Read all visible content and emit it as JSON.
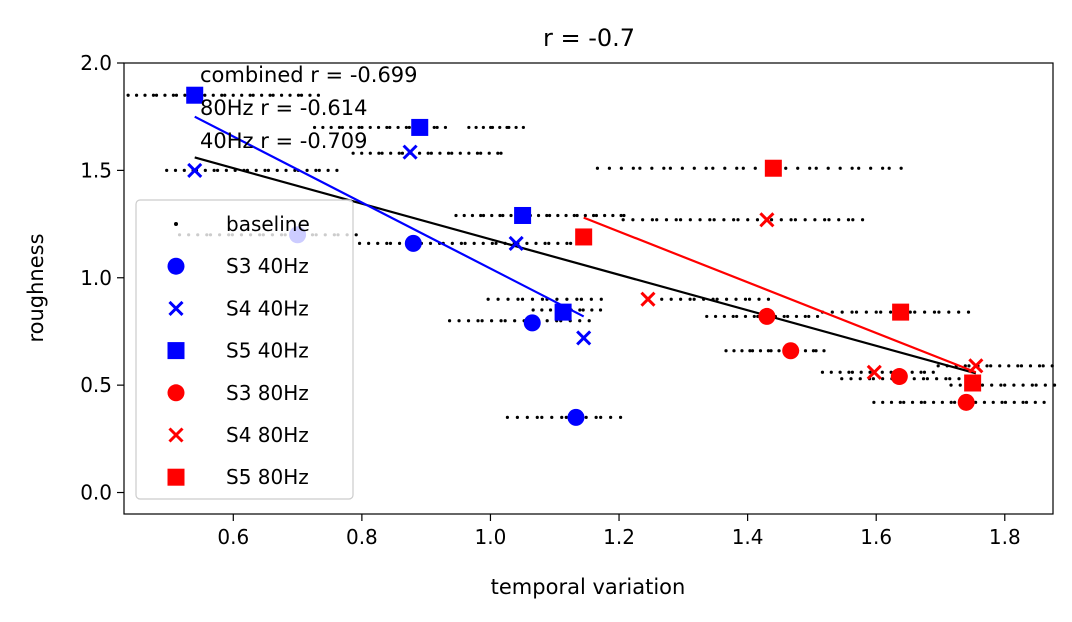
{
  "chart_data": {
    "type": "scatter",
    "title": "r = -0.7",
    "xlabel": "temporal variation",
    "ylabel": "roughness",
    "xlim": [
      0.43,
      1.875
    ],
    "ylim": [
      -0.1,
      2.0
    ],
    "xticks": [
      0.6,
      0.8,
      1.0,
      1.2,
      1.4,
      1.6,
      1.8
    ],
    "xtick_labels": [
      "0.6",
      "0.8",
      "1.0",
      "1.2",
      "1.4",
      "1.6",
      "1.8"
    ],
    "yticks": [
      0.0,
      0.5,
      1.0,
      1.5,
      2.0
    ],
    "ytick_labels": [
      "0.0",
      "0.5",
      "1.0",
      "1.5",
      "2.0"
    ],
    "grid": false,
    "legend_position": "lower-left",
    "annotations": [
      "combined r = -0.699",
      "80Hz r = -0.614",
      "40Hz r = -0.709"
    ],
    "baseline_clusters": [
      {
        "y": 1.85,
        "x_start": 0.44,
        "x_end": 0.73,
        "count": 28
      },
      {
        "y": 1.5,
        "x_start": 0.5,
        "x_end": 0.76,
        "count": 24
      },
      {
        "y": 1.7,
        "x_start": 0.73,
        "x_end": 0.93,
        "count": 20
      },
      {
        "y": 1.58,
        "x_start": 0.79,
        "x_end": 1.02,
        "count": 22
      },
      {
        "y": 1.7,
        "x_start": 0.97,
        "x_end": 1.05,
        "count": 10
      },
      {
        "y": 1.2,
        "x_start": 0.52,
        "x_end": 0.79,
        "count": 24
      },
      {
        "y": 1.16,
        "x_start": 0.8,
        "x_end": 1.14,
        "count": 30
      },
      {
        "y": 1.29,
        "x_start": 0.95,
        "x_end": 1.21,
        "count": 26
      },
      {
        "y": 0.9,
        "x_start": 1.0,
        "x_end": 1.17,
        "count": 14
      },
      {
        "y": 0.85,
        "x_start": 1.07,
        "x_end": 1.17,
        "count": 10
      },
      {
        "y": 0.8,
        "x_start": 0.94,
        "x_end": 1.15,
        "count": 18
      },
      {
        "y": 0.35,
        "x_start": 1.03,
        "x_end": 1.2,
        "count": 14
      },
      {
        "y": 1.51,
        "x_start": 1.17,
        "x_end": 1.64,
        "count": 30
      },
      {
        "y": 1.27,
        "x_start": 1.21,
        "x_end": 1.58,
        "count": 30
      },
      {
        "y": 0.9,
        "x_start": 1.27,
        "x_end": 1.43,
        "count": 14
      },
      {
        "y": 0.82,
        "x_start": 1.34,
        "x_end": 1.51,
        "count": 16
      },
      {
        "y": 0.66,
        "x_start": 1.37,
        "x_end": 1.52,
        "count": 16
      },
      {
        "y": 0.84,
        "x_start": 1.52,
        "x_end": 1.74,
        "count": 18
      },
      {
        "y": 0.56,
        "x_start": 1.52,
        "x_end": 1.69,
        "count": 16
      },
      {
        "y": 0.53,
        "x_start": 1.55,
        "x_end": 1.73,
        "count": 16
      },
      {
        "y": 0.59,
        "x_start": 1.7,
        "x_end": 1.875,
        "count": 16
      },
      {
        "y": 0.5,
        "x_start": 1.72,
        "x_end": 1.875,
        "count": 14
      },
      {
        "y": 0.42,
        "x_start": 1.6,
        "x_end": 1.86,
        "count": 24
      }
    ],
    "series": [
      {
        "name": "S3 40Hz",
        "marker": "circle",
        "color": "#0000ff",
        "points": [
          [
            0.7,
            1.2
          ],
          [
            0.88,
            1.16
          ],
          [
            1.065,
            0.79
          ],
          [
            1.133,
            0.35
          ]
        ]
      },
      {
        "name": "S4 40Hz",
        "marker": "x",
        "color": "#0000ff",
        "points": [
          [
            0.54,
            1.5
          ],
          [
            0.875,
            1.585
          ],
          [
            1.04,
            1.16
          ],
          [
            1.145,
            0.72
          ]
        ]
      },
      {
        "name": "S5 40Hz",
        "marker": "square",
        "color": "#0000ff",
        "points": [
          [
            0.54,
            1.85
          ],
          [
            0.89,
            1.7
          ],
          [
            1.05,
            1.29
          ],
          [
            1.113,
            0.84
          ]
        ]
      },
      {
        "name": "S3 80Hz",
        "marker": "circle",
        "color": "#ff0000",
        "points": [
          [
            1.43,
            0.82
          ],
          [
            1.467,
            0.66
          ],
          [
            1.636,
            0.54
          ],
          [
            1.74,
            0.42
          ]
        ]
      },
      {
        "name": "S4 80Hz",
        "marker": "x",
        "color": "#ff0000",
        "points": [
          [
            1.245,
            0.9
          ],
          [
            1.43,
            1.27
          ],
          [
            1.597,
            0.56
          ],
          [
            1.755,
            0.59
          ]
        ]
      },
      {
        "name": "S5 80Hz",
        "marker": "square",
        "color": "#ff0000",
        "points": [
          [
            1.145,
            1.19
          ],
          [
            1.44,
            1.51
          ],
          [
            1.638,
            0.84
          ],
          [
            1.75,
            0.51
          ]
        ]
      }
    ],
    "fit_lines": [
      {
        "label": "combined",
        "color": "#000000",
        "x": [
          0.54,
          1.755
        ],
        "y": [
          1.56,
          0.555
        ]
      },
      {
        "label": "40Hz",
        "color": "#0000ff",
        "x": [
          0.54,
          1.145
        ],
        "y": [
          1.75,
          0.82
        ]
      },
      {
        "label": "80Hz",
        "color": "#ff0000",
        "x": [
          1.145,
          1.755
        ],
        "y": [
          1.28,
          0.56
        ]
      }
    ],
    "legend": [
      {
        "label": "baseline",
        "marker": "dot",
        "color": "#000000"
      },
      {
        "label": "S3 40Hz",
        "marker": "circle",
        "color": "#0000ff"
      },
      {
        "label": "S4 40Hz",
        "marker": "x",
        "color": "#0000ff"
      },
      {
        "label": "S5 40Hz",
        "marker": "square",
        "color": "#0000ff"
      },
      {
        "label": "S3 80Hz",
        "marker": "circle",
        "color": "#ff0000"
      },
      {
        "label": "S4 80Hz",
        "marker": "x",
        "color": "#ff0000"
      },
      {
        "label": "S5 80Hz",
        "marker": "square",
        "color": "#ff0000"
      }
    ]
  }
}
